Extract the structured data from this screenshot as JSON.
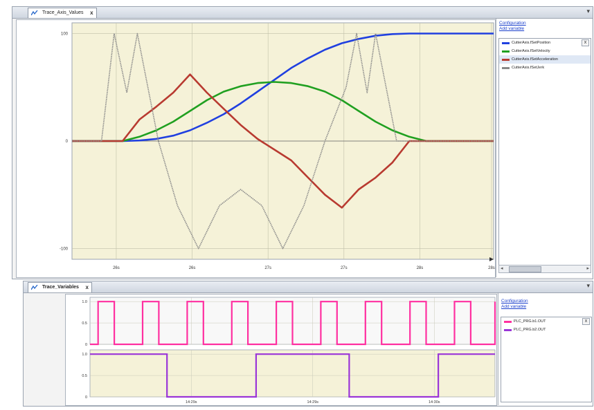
{
  "top_window": {
    "tab_label": "Trace_Axis_Values",
    "close_glyph": "x",
    "links": {
      "configuration": "Configuration",
      "add_variable": "Add variable"
    },
    "legend": [
      {
        "label": "CutterAxis.fSetPosition",
        "color": "#2040e0"
      },
      {
        "label": "CutterAxis.fSetVelocity",
        "color": "#20a020"
      },
      {
        "label": "CutterAxis.fSetAcceleration",
        "color": "#b83a30"
      },
      {
        "label": "CutterAxis.fSetJerk",
        "color": "#888888"
      }
    ],
    "legend_close": "x"
  },
  "bottom_window": {
    "tab_label": "Trace_Variables",
    "close_glyph": "x",
    "links": {
      "configuration": "Configuration",
      "add_variable": "Add variable"
    },
    "legend": [
      {
        "label": "PLC_PRG.b1.OUT",
        "color": "#ff2fa0"
      },
      {
        "label": "PLC_PRG.b2.OUT",
        "color": "#9a35d8"
      }
    ],
    "legend_close": "x"
  },
  "chart_data": [
    {
      "type": "line",
      "title": "",
      "xlabel": "",
      "ylabel": "",
      "x_ticks": [
        "26s",
        "26s",
        "27s",
        "27s",
        "28s",
        "28s"
      ],
      "y_ticks": [
        "100",
        "0",
        "-100"
      ],
      "ylim": [
        -110,
        110
      ],
      "grid": true,
      "series": [
        {
          "name": "CutterAxis.fSetPosition",
          "color": "#2040e0",
          "x": [
            0.0,
            0.08,
            0.12,
            0.16,
            0.2,
            0.24,
            0.28,
            0.32,
            0.36,
            0.4,
            0.44,
            0.48,
            0.52,
            0.56,
            0.6,
            0.64,
            0.68,
            0.72,
            0.76,
            0.8,
            0.84,
            0.88,
            0.92,
            0.96,
            1.0
          ],
          "y": [
            0,
            0,
            0,
            0.5,
            2,
            5,
            10,
            17,
            25,
            35,
            46,
            57,
            68,
            77,
            85,
            91,
            95,
            98,
            99.5,
            100,
            100,
            100,
            100,
            100,
            100
          ]
        },
        {
          "name": "CutterAxis.fSetVelocity",
          "color": "#20a020",
          "x": [
            0.0,
            0.08,
            0.12,
            0.16,
            0.2,
            0.24,
            0.28,
            0.32,
            0.36,
            0.4,
            0.44,
            0.48,
            0.52,
            0.56,
            0.6,
            0.64,
            0.68,
            0.72,
            0.76,
            0.8,
            0.84,
            0.88,
            0.92,
            0.96,
            1.0
          ],
          "y": [
            0,
            0,
            0,
            4,
            10,
            18,
            28,
            38,
            46,
            51,
            54,
            55,
            54,
            51,
            46,
            38,
            28,
            18,
            10,
            4,
            0,
            0,
            0,
            0,
            0
          ]
        },
        {
          "name": "CutterAxis.fSetAcceleration",
          "color": "#b83a30",
          "x": [
            0.0,
            0.08,
            0.12,
            0.16,
            0.2,
            0.24,
            0.28,
            0.32,
            0.36,
            0.4,
            0.44,
            0.48,
            0.52,
            0.56,
            0.6,
            0.64,
            0.68,
            0.72,
            0.76,
            0.8,
            0.84,
            0.88,
            0.92,
            0.96,
            1.0
          ],
          "y": [
            0,
            0,
            0,
            20,
            32,
            45,
            62,
            45,
            30,
            15,
            2,
            -8,
            -18,
            -34,
            -50,
            -62,
            -45,
            -34,
            -20,
            0,
            0,
            0,
            0,
            0,
            0
          ]
        },
        {
          "name": "CutterAxis.fSetJerk",
          "color": "#888888",
          "x": [
            0.0,
            0.07,
            0.085,
            0.1,
            0.13,
            0.155,
            0.18,
            0.205,
            0.25,
            0.3,
            0.35,
            0.4,
            0.45,
            0.5,
            0.55,
            0.6,
            0.65,
            0.675,
            0.7,
            0.72,
            0.745,
            0.77,
            0.8,
            0.825,
            0.86,
            1.0
          ],
          "y": [
            0,
            0,
            50,
            100,
            45,
            100,
            50,
            0,
            -60,
            -100,
            -60,
            -45,
            -60,
            -100,
            -60,
            0,
            50,
            100,
            45,
            100,
            50,
            0,
            0,
            0,
            0,
            0
          ]
        }
      ]
    },
    {
      "type": "line",
      "title": "",
      "xlabel": "",
      "ylabel": "",
      "x_ticks": [
        "14:29s",
        "14:29s",
        "14:30s"
      ],
      "y_ticks": [
        "1.0",
        "0.5",
        "0"
      ],
      "ylim": [
        0,
        1.1
      ],
      "grid": true,
      "series": [
        {
          "name": "PLC_PRG.b1.OUT",
          "color": "#ff2fa0",
          "x": [
            0.0,
            0.02,
            0.06,
            0.13,
            0.17,
            0.24,
            0.28,
            0.35,
            0.39,
            0.46,
            0.5,
            0.57,
            0.61,
            0.68,
            0.72,
            0.79,
            0.83,
            0.9,
            0.94,
            1.0
          ],
          "y": [
            0,
            1,
            0,
            1,
            0,
            1,
            0,
            1,
            0,
            1,
            0,
            1,
            0,
            1,
            0,
            1,
            0,
            1,
            0,
            1
          ]
        },
        {
          "name": "PLC_PRG.b2.OUT",
          "color": "#9a35d8",
          "x": [
            0.0,
            0.19,
            0.41,
            0.64,
            0.86,
            1.0
          ],
          "y": [
            1,
            0,
            1,
            0,
            1,
            1
          ]
        }
      ]
    }
  ]
}
